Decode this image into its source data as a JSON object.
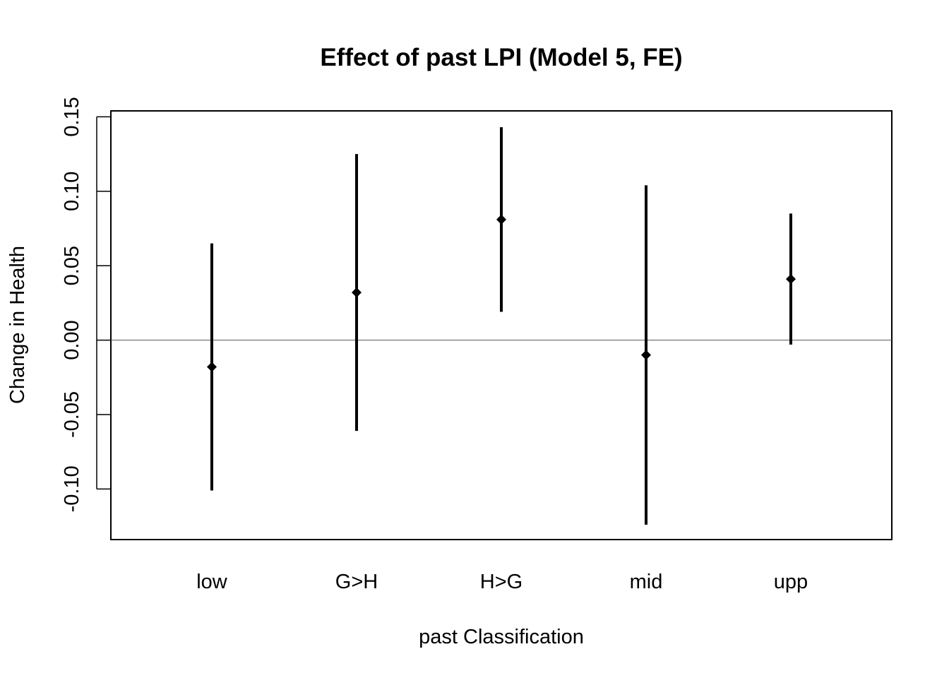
{
  "chart_data": {
    "type": "errorbar",
    "title": "Effect of past LPI (Model 5, FE)",
    "xlabel": "past Classification",
    "ylabel": "Change in Health",
    "categories": [
      "low",
      "G>H",
      "H>G",
      "mid",
      "upp"
    ],
    "estimates": [
      -0.018,
      0.032,
      0.081,
      -0.01,
      0.041
    ],
    "lower": [
      -0.101,
      -0.061,
      0.019,
      -0.124,
      -0.003
    ],
    "upper": [
      0.065,
      0.125,
      0.143,
      0.104,
      0.085
    ],
    "yticks": [
      -0.1,
      -0.05,
      0.0,
      0.05,
      0.1,
      0.15
    ],
    "ytick_labels": [
      "-0.10",
      "-0.05",
      "0.00",
      "0.05",
      "0.10",
      "0.15"
    ],
    "ylim": [
      -0.134,
      0.154
    ],
    "reference_line": 0,
    "grid": false,
    "colors": {
      "marks": "#000000",
      "reference_line": "#555555"
    }
  }
}
